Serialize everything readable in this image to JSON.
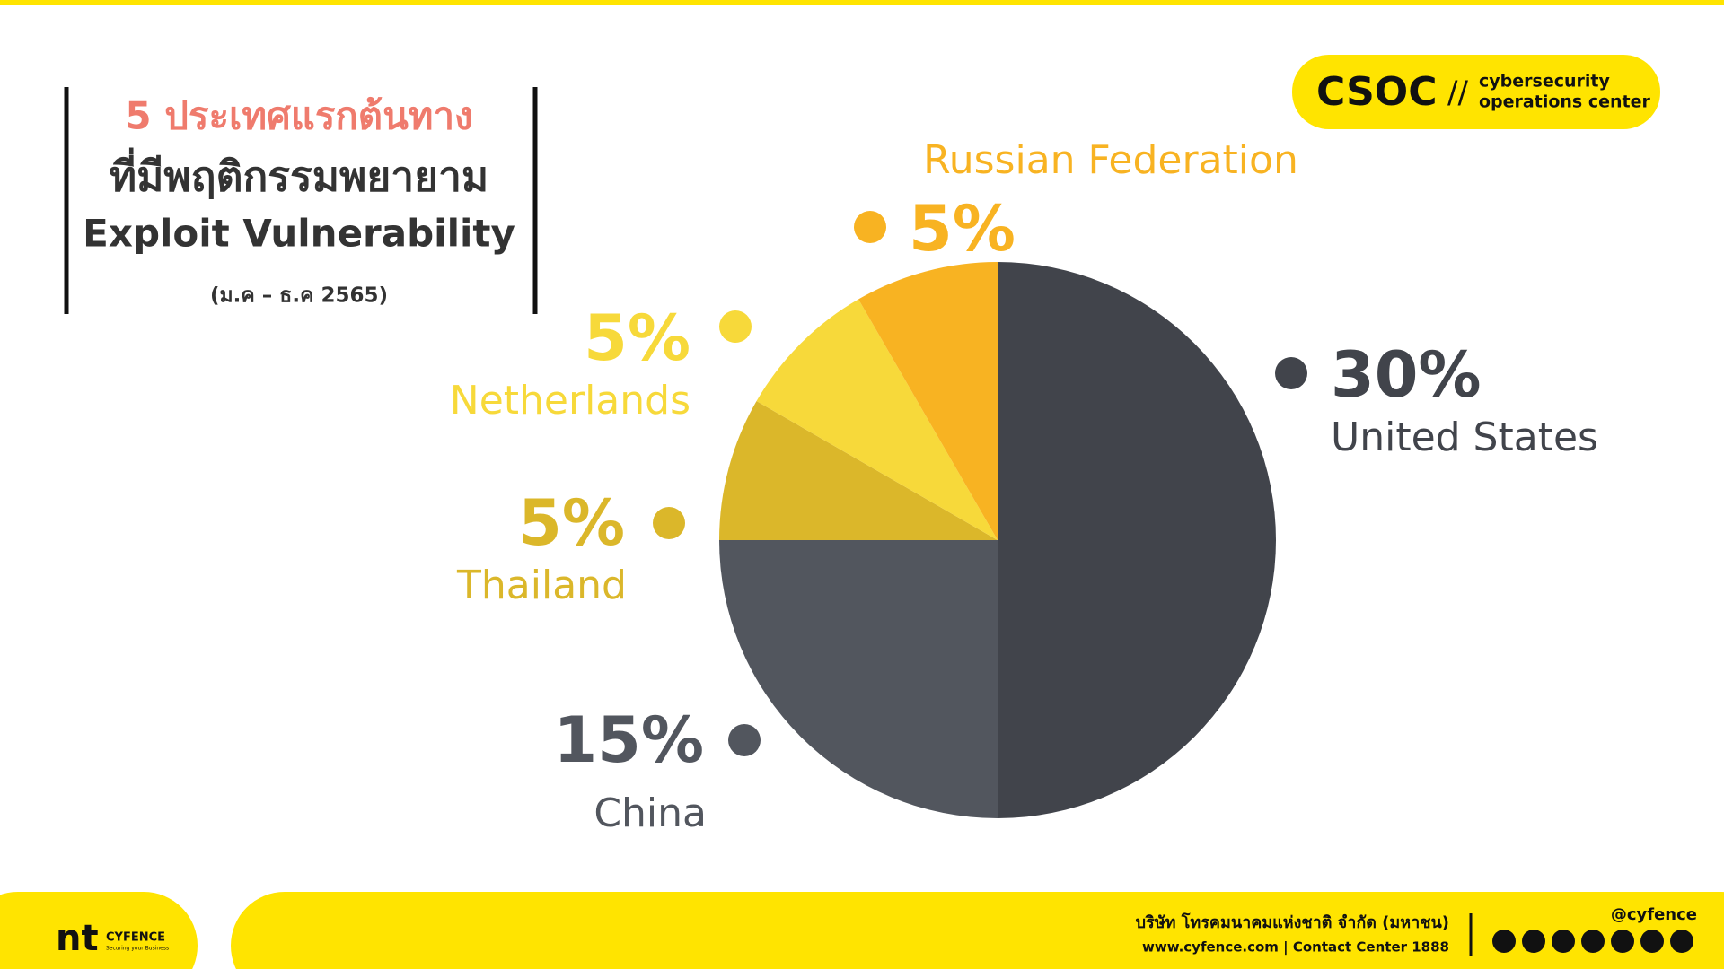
{
  "header": {
    "title_line1": "5 ประเทศแรกต้นทาง",
    "title_line2": "ที่มีพฤติกรรมพยายาม",
    "title_line3": "Exploit Vulnerability",
    "period": "(ม.ค –  ธ.ค 2565)"
  },
  "badge": {
    "name": "CSOC",
    "separator": "//",
    "line1": "cybersecurity",
    "line2": "operations center"
  },
  "chart_data": {
    "type": "pie",
    "categories": [
      "United States",
      "China",
      "Thailand",
      "Netherlands",
      "Russian Federation"
    ],
    "values": [
      30,
      15,
      5,
      5,
      5
    ],
    "value_labels": [
      "30%",
      "15%",
      "5%",
      "5%",
      "5%"
    ],
    "colors": [
      "#41444b",
      "#52565e",
      "#dbb72a",
      "#f7d93a",
      "#f8b322"
    ]
  },
  "footer": {
    "logo": "nt",
    "brand": "CYFENCE",
    "tagline": "Securing your Business",
    "company": "บริษัท โทรคมนาคมแห่งชาติ จำกัด (มหาชน)",
    "contact": "www.cyfence.com | Contact Center 1888",
    "handle": "@cyfence"
  }
}
